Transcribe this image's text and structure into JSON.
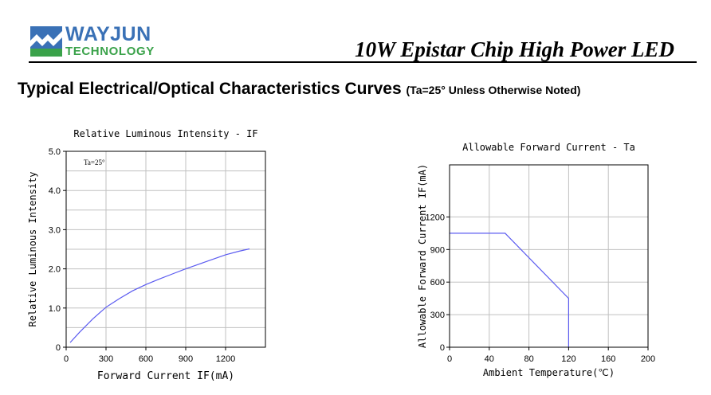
{
  "header": {
    "logo_name": "WAYJUN",
    "logo_sub": "TECHNOLOGY",
    "product_title": "10W Epistar Chip High Power LED"
  },
  "section": {
    "title": "Typical Electrical/Optical Characteristics Curves",
    "note": "(Ta=25° Unless Otherwise Noted)"
  },
  "colors": {
    "brand_blue": "#3a71b6",
    "brand_green": "#3aa24a",
    "curve": "#5b5bf0",
    "grid": "#c0c0c0"
  },
  "chart_data": [
    {
      "type": "line",
      "title": "Relative Luminous Intensity - IF",
      "xlabel": "Forward Current IF(mA)",
      "ylabel": "Relative Luminous Intensity",
      "annotation": "Ta=25°",
      "xlim": [
        0,
        1500
      ],
      "ylim": [
        0,
        5.0
      ],
      "xticks": [
        0,
        300,
        600,
        900,
        1200
      ],
      "xtick_labels": [
        "0",
        "300",
        "600",
        "900",
        "1200"
      ],
      "yticks": [
        0,
        1.0,
        2.0,
        3.0,
        4.0,
        5.0
      ],
      "ytick_labels": [
        "0",
        "1.0",
        "2.0",
        "3.0",
        "4.0",
        "5.0"
      ],
      "grid": true,
      "series": [
        {
          "x": [
            30,
            100,
            200,
            300,
            400,
            500,
            600,
            700,
            800,
            900,
            1000,
            1100,
            1200,
            1300,
            1380
          ],
          "y": [
            0.12,
            0.38,
            0.72,
            1.02,
            1.24,
            1.44,
            1.6,
            1.74,
            1.87,
            2.0,
            2.12,
            2.24,
            2.36,
            2.45,
            2.51
          ]
        }
      ]
    },
    {
      "type": "line",
      "title": "Allowable Forward Current - Ta",
      "xlabel": "Ambient Temperature(℃)",
      "ylabel": "Allowable Forward Current IF(mA)",
      "xlim": [
        0,
        200
      ],
      "ylim": [
        0,
        1680
      ],
      "xticks": [
        0,
        40,
        80,
        120,
        160,
        200
      ],
      "xtick_labels": [
        "0",
        "40",
        "80",
        "120",
        "160",
        "200"
      ],
      "yticks": [
        0,
        300,
        600,
        900,
        1200
      ],
      "ytick_labels": [
        "0",
        "300",
        "600",
        "900",
        "1200"
      ],
      "grid": true,
      "series": [
        {
          "x": [
            0,
            56,
            120,
            120
          ],
          "y": [
            1050,
            1050,
            450,
            0
          ]
        }
      ]
    }
  ]
}
